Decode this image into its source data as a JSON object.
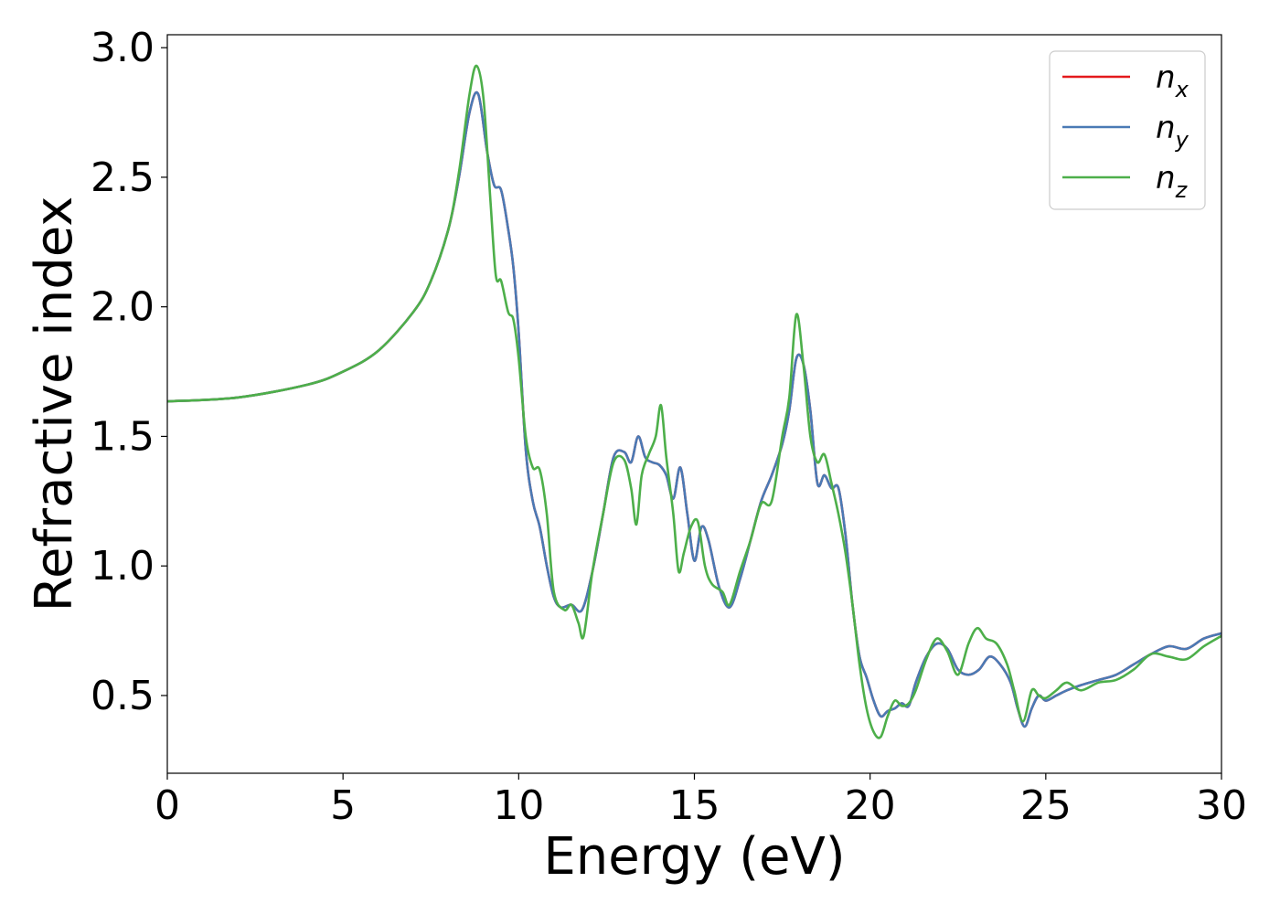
{
  "chart_data": {
    "type": "line",
    "title": "",
    "xlabel": "Energy (eV)",
    "ylabel": "Refractive index",
    "xlim": [
      0,
      30
    ],
    "ylim": [
      0.2,
      3.05
    ],
    "xticks": [
      0,
      5,
      10,
      15,
      20,
      25,
      30
    ],
    "yticks": [
      0.5,
      1.0,
      1.5,
      2.0,
      2.5,
      3.0
    ],
    "grid": false,
    "legend_position": "top-right",
    "series": [
      {
        "name": "n",
        "subscript": "x",
        "color": "#e41a1c",
        "x": [
          0,
          2,
          4,
          5,
          6,
          7,
          7.5,
          8,
          8.3,
          8.6,
          8.85,
          9.1,
          9.3,
          9.5,
          9.7,
          9.85,
          10.0,
          10.2,
          10.4,
          10.6,
          10.8,
          11.0,
          11.2,
          11.5,
          11.8,
          12.1,
          12.4,
          12.7,
          13.0,
          13.2,
          13.4,
          13.6,
          13.8,
          14.0,
          14.2,
          14.4,
          14.6,
          14.8,
          15.0,
          15.2,
          15.4,
          15.7,
          16.0,
          16.3,
          16.6,
          16.9,
          17.2,
          17.5,
          17.7,
          17.9,
          18.1,
          18.3,
          18.5,
          18.7,
          18.9,
          19.1,
          19.3,
          19.5,
          19.7,
          19.9,
          20.1,
          20.3,
          20.5,
          20.7,
          20.9,
          21.1,
          21.3,
          21.6,
          21.9,
          22.2,
          22.5,
          22.8,
          23.1,
          23.4,
          23.7,
          24.0,
          24.2,
          24.4,
          24.6,
          24.8,
          25.0,
          25.3,
          25.6,
          26.0,
          26.5,
          27.0,
          27.5,
          28.0,
          28.5,
          29.0,
          29.5,
          30.0
        ],
        "y": [
          1.635,
          1.65,
          1.7,
          1.75,
          1.83,
          1.98,
          2.1,
          2.3,
          2.5,
          2.75,
          2.82,
          2.6,
          2.47,
          2.45,
          2.3,
          2.15,
          1.9,
          1.45,
          1.25,
          1.15,
          1.0,
          0.88,
          0.84,
          0.85,
          0.83,
          0.98,
          1.2,
          1.42,
          1.44,
          1.4,
          1.5,
          1.42,
          1.4,
          1.39,
          1.35,
          1.26,
          1.38,
          1.2,
          1.02,
          1.15,
          1.1,
          0.92,
          0.84,
          0.95,
          1.1,
          1.25,
          1.35,
          1.47,
          1.6,
          1.8,
          1.78,
          1.6,
          1.32,
          1.35,
          1.3,
          1.3,
          1.12,
          0.85,
          0.65,
          0.57,
          0.48,
          0.42,
          0.44,
          0.45,
          0.47,
          0.46,
          0.55,
          0.65,
          0.7,
          0.68,
          0.6,
          0.58,
          0.6,
          0.65,
          0.62,
          0.55,
          0.45,
          0.38,
          0.45,
          0.5,
          0.48,
          0.5,
          0.52,
          0.54,
          0.56,
          0.58,
          0.62,
          0.66,
          0.69,
          0.68,
          0.72,
          0.74
        ]
      },
      {
        "name": "n",
        "subscript": "y",
        "color": "#4a7ab5",
        "x": [
          0,
          2,
          4,
          5,
          6,
          7,
          7.5,
          8,
          8.3,
          8.6,
          8.85,
          9.1,
          9.3,
          9.5,
          9.7,
          9.85,
          10.0,
          10.2,
          10.4,
          10.6,
          10.8,
          11.0,
          11.2,
          11.5,
          11.8,
          12.1,
          12.4,
          12.7,
          13.0,
          13.2,
          13.4,
          13.6,
          13.8,
          14.0,
          14.2,
          14.4,
          14.6,
          14.8,
          15.0,
          15.2,
          15.4,
          15.7,
          16.0,
          16.3,
          16.6,
          16.9,
          17.2,
          17.5,
          17.7,
          17.9,
          18.1,
          18.3,
          18.5,
          18.7,
          18.9,
          19.1,
          19.3,
          19.5,
          19.7,
          19.9,
          20.1,
          20.3,
          20.5,
          20.7,
          20.9,
          21.1,
          21.3,
          21.6,
          21.9,
          22.2,
          22.5,
          22.8,
          23.1,
          23.4,
          23.7,
          24.0,
          24.2,
          24.4,
          24.6,
          24.8,
          25.0,
          25.3,
          25.6,
          26.0,
          26.5,
          27.0,
          27.5,
          28.0,
          28.5,
          29.0,
          29.5,
          30.0
        ],
        "y": [
          1.635,
          1.65,
          1.7,
          1.75,
          1.83,
          1.98,
          2.1,
          2.3,
          2.5,
          2.75,
          2.82,
          2.6,
          2.47,
          2.45,
          2.3,
          2.15,
          1.9,
          1.45,
          1.25,
          1.15,
          1.0,
          0.88,
          0.84,
          0.85,
          0.83,
          0.98,
          1.2,
          1.42,
          1.44,
          1.4,
          1.5,
          1.42,
          1.4,
          1.39,
          1.35,
          1.26,
          1.38,
          1.2,
          1.02,
          1.15,
          1.1,
          0.92,
          0.84,
          0.95,
          1.1,
          1.25,
          1.35,
          1.47,
          1.6,
          1.8,
          1.78,
          1.6,
          1.32,
          1.35,
          1.3,
          1.3,
          1.12,
          0.85,
          0.65,
          0.57,
          0.48,
          0.42,
          0.44,
          0.45,
          0.47,
          0.46,
          0.55,
          0.65,
          0.7,
          0.68,
          0.6,
          0.58,
          0.6,
          0.65,
          0.62,
          0.55,
          0.45,
          0.38,
          0.45,
          0.5,
          0.48,
          0.5,
          0.52,
          0.54,
          0.56,
          0.58,
          0.62,
          0.66,
          0.69,
          0.68,
          0.72,
          0.74
        ]
      },
      {
        "name": "n",
        "subscript": "z",
        "color": "#4daf4a",
        "x": [
          0,
          2,
          4,
          5,
          6,
          7,
          7.5,
          8,
          8.3,
          8.6,
          8.8,
          9.0,
          9.2,
          9.35,
          9.5,
          9.7,
          9.85,
          10.0,
          10.2,
          10.4,
          10.6,
          10.8,
          11.0,
          11.3,
          11.5,
          11.7,
          11.85,
          12.1,
          12.4,
          12.7,
          13.0,
          13.2,
          13.35,
          13.5,
          13.7,
          13.9,
          14.05,
          14.2,
          14.4,
          14.55,
          14.7,
          14.9,
          15.1,
          15.3,
          15.5,
          15.8,
          16.0,
          16.3,
          16.6,
          16.9,
          17.2,
          17.5,
          17.7,
          17.9,
          18.1,
          18.3,
          18.5,
          18.7,
          18.9,
          19.1,
          19.3,
          19.5,
          19.7,
          19.9,
          20.1,
          20.3,
          20.5,
          20.7,
          20.9,
          21.1,
          21.3,
          21.6,
          21.9,
          22.2,
          22.5,
          22.8,
          23.05,
          23.3,
          23.6,
          23.9,
          24.1,
          24.35,
          24.6,
          24.8,
          25.0,
          25.3,
          25.6,
          26.0,
          26.5,
          27.0,
          27.5,
          28.0,
          28.5,
          29.0,
          29.5,
          30.0
        ],
        "y": [
          1.635,
          1.65,
          1.7,
          1.75,
          1.83,
          1.98,
          2.1,
          2.3,
          2.52,
          2.82,
          2.93,
          2.8,
          2.4,
          2.12,
          2.1,
          1.98,
          1.95,
          1.8,
          1.5,
          1.38,
          1.37,
          1.2,
          0.9,
          0.83,
          0.85,
          0.78,
          0.73,
          0.98,
          1.2,
          1.4,
          1.41,
          1.3,
          1.16,
          1.35,
          1.43,
          1.5,
          1.62,
          1.42,
          1.2,
          0.98,
          1.05,
          1.15,
          1.17,
          1.0,
          0.93,
          0.9,
          0.85,
          0.98,
          1.1,
          1.24,
          1.25,
          1.5,
          1.65,
          1.97,
          1.78,
          1.5,
          1.4,
          1.43,
          1.32,
          1.2,
          1.05,
          0.85,
          0.62,
          0.45,
          0.36,
          0.34,
          0.42,
          0.48,
          0.46,
          0.47,
          0.52,
          0.64,
          0.72,
          0.67,
          0.58,
          0.7,
          0.76,
          0.72,
          0.7,
          0.62,
          0.52,
          0.4,
          0.52,
          0.5,
          0.49,
          0.52,
          0.55,
          0.52,
          0.55,
          0.56,
          0.6,
          0.66,
          0.65,
          0.64,
          0.69,
          0.73
        ]
      }
    ]
  }
}
